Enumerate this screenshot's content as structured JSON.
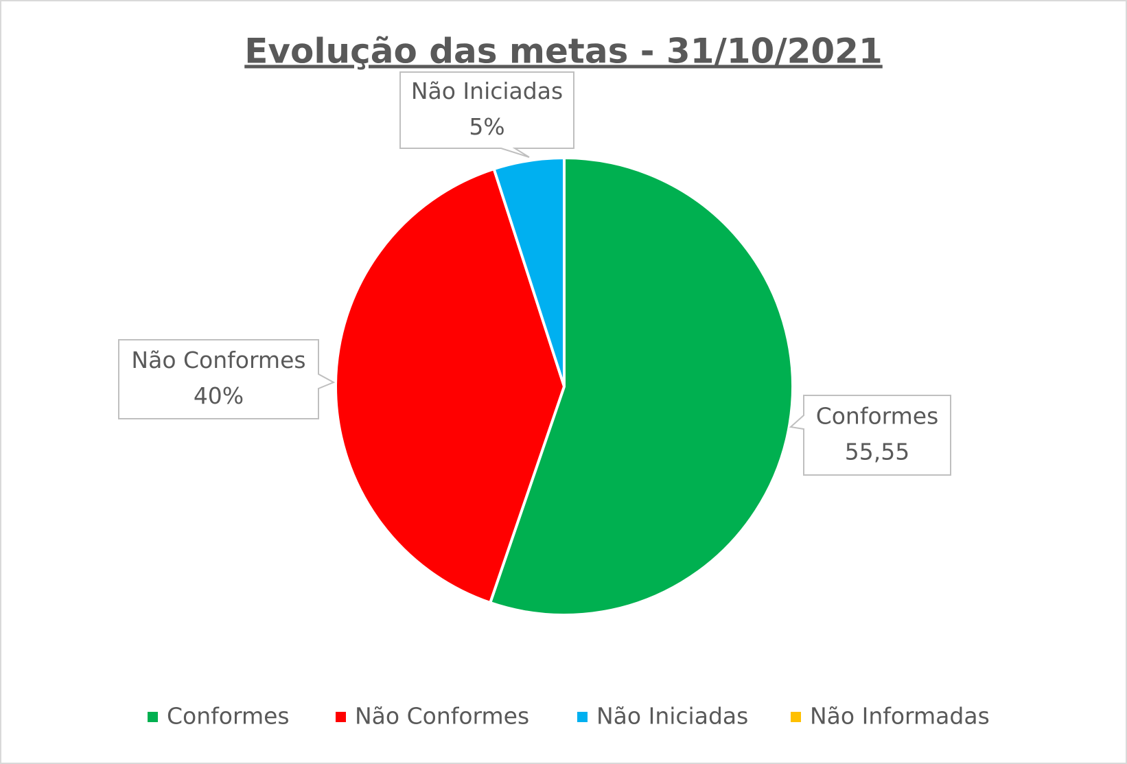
{
  "chart_data": {
    "type": "pie",
    "title": "Evolução das metas - 31/10/2021",
    "categories": [
      "Conformes",
      "Não Conformes",
      "Não Iniciadas",
      "Não Informadas"
    ],
    "values": [
      55.55,
      40,
      5,
      0
    ],
    "value_labels": [
      "55,55",
      "40%",
      "5%",
      null
    ],
    "colors": [
      "#00b050",
      "#ff0000",
      "#00b0f0",
      "#ffc000"
    ],
    "legend": "bottom"
  }
}
